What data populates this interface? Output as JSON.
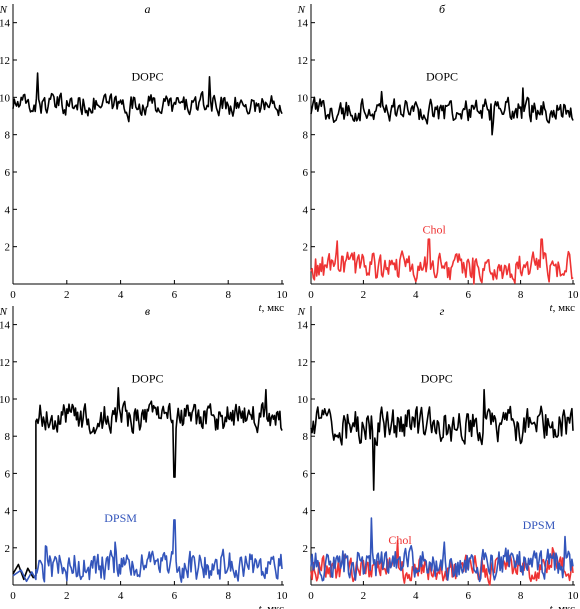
{
  "chart_data": [
    {
      "type": "line",
      "panel_label": "а",
      "xlabel": "t",
      "xunit": ", мкс",
      "ylabel": "N",
      "xlim": [
        0,
        10
      ],
      "ylim": [
        0,
        15
      ],
      "xticks": [
        0,
        2,
        4,
        6,
        8,
        10
      ],
      "yticks": [
        2,
        4,
        6,
        8,
        10,
        12,
        14
      ],
      "series": [
        {
          "name": "DOPC",
          "color": "#000000",
          "mean": 9.6,
          "amp": 0.55,
          "start": 0,
          "pre": null,
          "spikes": [
            [
              0.9,
              11.3
            ],
            [
              7.3,
              11.1
            ],
            [
              4.3,
              8.7
            ]
          ],
          "label_pos": [
            5.0,
            10.9
          ]
        }
      ]
    },
    {
      "type": "line",
      "panel_label": "б",
      "xlabel": "t",
      "xunit": ", мкс",
      "ylabel": "N",
      "xlim": [
        0,
        10
      ],
      "ylim": [
        0,
        15
      ],
      "xticks": [
        0,
        2,
        4,
        6,
        8,
        10
      ],
      "yticks": [
        2,
        4,
        6,
        8,
        10,
        12,
        14
      ],
      "series": [
        {
          "name": "DOPC",
          "color": "#000000",
          "mean": 9.3,
          "amp": 0.6,
          "start": 0,
          "pre": null,
          "spikes": [
            [
              6.9,
              8.0
            ],
            [
              8.1,
              10.5
            ],
            [
              2.7,
              10.3
            ]
          ],
          "label_pos": [
            5.0,
            10.9
          ]
        },
        {
          "name": "Chol",
          "color": "#ee3333",
          "mean": 0.9,
          "amp": 0.75,
          "start": 0,
          "pre": null,
          "spikes": [
            [
              1.0,
              2.3
            ],
            [
              4.5,
              2.4
            ],
            [
              8.8,
              2.4
            ],
            [
              6.2,
              0.0
            ]
          ],
          "label_pos": [
            4.7,
            2.7
          ]
        }
      ]
    },
    {
      "type": "line",
      "panel_label": "в",
      "xlabel": "t",
      "xunit": ", мкс",
      "ylabel": "N",
      "xlim": [
        0,
        10
      ],
      "ylim": [
        0,
        15
      ],
      "xticks": [
        0,
        2,
        4,
        6,
        8,
        10
      ],
      "yticks": [
        2,
        4,
        6,
        8,
        10,
        12,
        14
      ],
      "series": [
        {
          "name": "DOPC",
          "color": "#000000",
          "mean": 9.0,
          "amp": 0.75,
          "start": 0.85,
          "pre": [
            [
              0,
              0.6
            ],
            [
              0.2,
              1.1
            ],
            [
              0.4,
              0.3
            ],
            [
              0.55,
              0.9
            ],
            [
              0.75,
              0.4
            ],
            [
              0.85,
              0.5
            ]
          ],
          "spikes": [
            [
              6.0,
              5.8
            ],
            [
              3.9,
              10.6
            ],
            [
              9.4,
              10.5
            ]
          ],
          "label_pos": [
            5.0,
            10.9
          ]
        },
        {
          "name": "DPSM",
          "color": "#3355bb",
          "mean": 1.0,
          "amp": 0.8,
          "start": 0.85,
          "pre": [
            [
              0,
              0.5
            ],
            [
              0.3,
              0.8
            ],
            [
              0.5,
              0.2
            ],
            [
              0.7,
              0.7
            ],
            [
              0.85,
              0.3
            ]
          ],
          "spikes": [
            [
              6.0,
              3.5
            ],
            [
              3.8,
              2.3
            ],
            [
              1.2,
              2.1
            ]
          ],
          "label_pos": [
            4.0,
            3.4
          ]
        }
      ]
    },
    {
      "type": "line",
      "panel_label": "г",
      "xlabel": "t",
      "xunit": ", мкс",
      "ylabel": "N",
      "xlim": [
        0,
        10
      ],
      "ylim": [
        0,
        15
      ],
      "xticks": [
        0,
        2,
        4,
        6,
        8,
        10
      ],
      "yticks": [
        2,
        4,
        6,
        8,
        10,
        12,
        14
      ],
      "series": [
        {
          "name": "DOPC",
          "color": "#000000",
          "mean": 8.6,
          "amp": 0.9,
          "start": 0,
          "pre": null,
          "spikes": [
            [
              2.4,
              5.1
            ],
            [
              6.6,
              10.5
            ],
            [
              9.8,
              9.0
            ]
          ],
          "label_pos": [
            4.8,
            10.9
          ]
        },
        {
          "name": "Chol",
          "color": "#ee3333",
          "mean": 0.85,
          "amp": 0.7,
          "start": 0,
          "pre": null,
          "spikes": [
            [
              3.3,
              2.4
            ],
            [
              9.2,
              2.0
            ]
          ],
          "label_pos": [
            3.4,
            2.2
          ]
        },
        {
          "name": "DPSM",
          "color": "#3355bb",
          "mean": 1.1,
          "amp": 0.8,
          "start": 0,
          "pre": null,
          "spikes": [
            [
              2.3,
              3.6
            ],
            [
              9.7,
              2.6
            ],
            [
              5.1,
              2.3
            ]
          ],
          "label_pos": [
            8.7,
            3.0
          ]
        }
      ]
    }
  ]
}
